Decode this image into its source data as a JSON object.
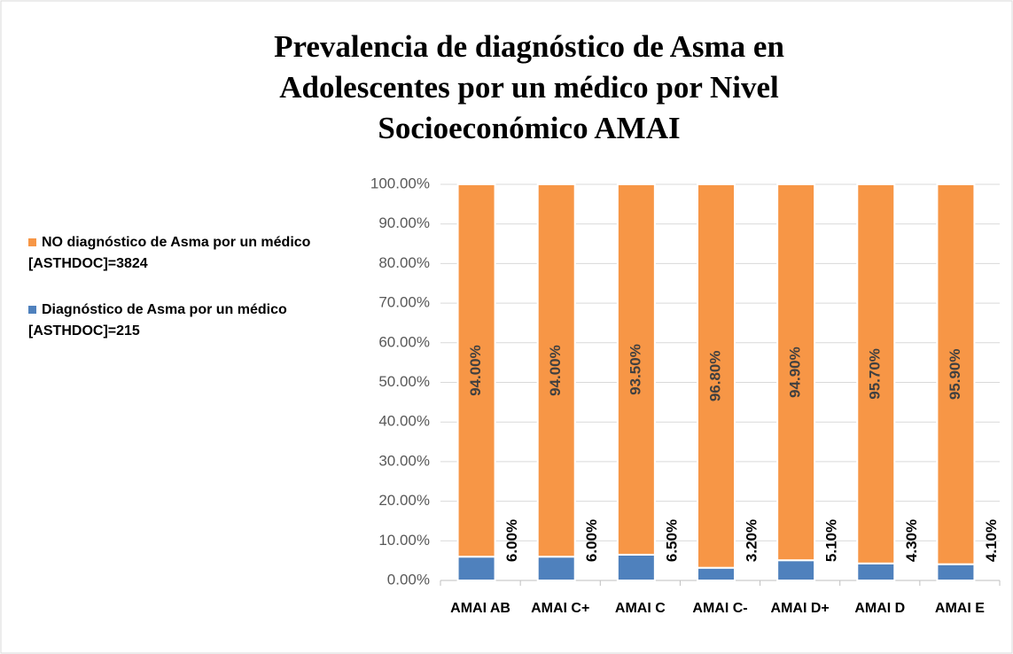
{
  "chart_data": {
    "type": "bar",
    "stacked": true,
    "title": "Prevalencia de diagnóstico de Asma en Adolescentes por un médico por Nivel Socioeconómico AMAI",
    "categories": [
      "AMAI AB",
      "AMAI C+",
      "AMAI C",
      "AMAI C-",
      "AMAI D+",
      "AMAI D",
      "AMAI E"
    ],
    "series": [
      {
        "name": "Diagnóstico de Asma por un médico [ASTHDOC]=215",
        "color": "#4f81bd",
        "values": [
          6.0,
          6.0,
          6.5,
          3.2,
          5.1,
          4.3,
          4.1
        ],
        "value_labels": [
          "6.00%",
          "6.00%",
          "6.50%",
          "3.20%",
          "5.10%",
          "4.30%",
          "4.10%"
        ]
      },
      {
        "name": "NO diagnóstico de Asma por un médico [ASTHDOC]=3824",
        "color": "#f79646",
        "values": [
          94.0,
          94.0,
          93.5,
          96.8,
          94.9,
          95.7,
          95.9
        ],
        "value_labels": [
          "94.00%",
          "94.00%",
          "93.50%",
          "96.80%",
          "94.90%",
          "95.70%",
          "95.90%"
        ]
      }
    ],
    "ylim": [
      0,
      100
    ],
    "yticks": [
      {
        "value": 0,
        "label": "0.00%"
      },
      {
        "value": 10,
        "label": "10.00%"
      },
      {
        "value": 20,
        "label": "20.00%"
      },
      {
        "value": 30,
        "label": "30.00%"
      },
      {
        "value": 40,
        "label": "40.00%"
      },
      {
        "value": 50,
        "label": "50.00%"
      },
      {
        "value": 60,
        "label": "60.00%"
      },
      {
        "value": 70,
        "label": "70.00%"
      },
      {
        "value": 80,
        "label": "80.00%"
      },
      {
        "value": 90,
        "label": "90.00%"
      },
      {
        "value": 100,
        "label": "100.00%"
      }
    ],
    "grid": true
  }
}
